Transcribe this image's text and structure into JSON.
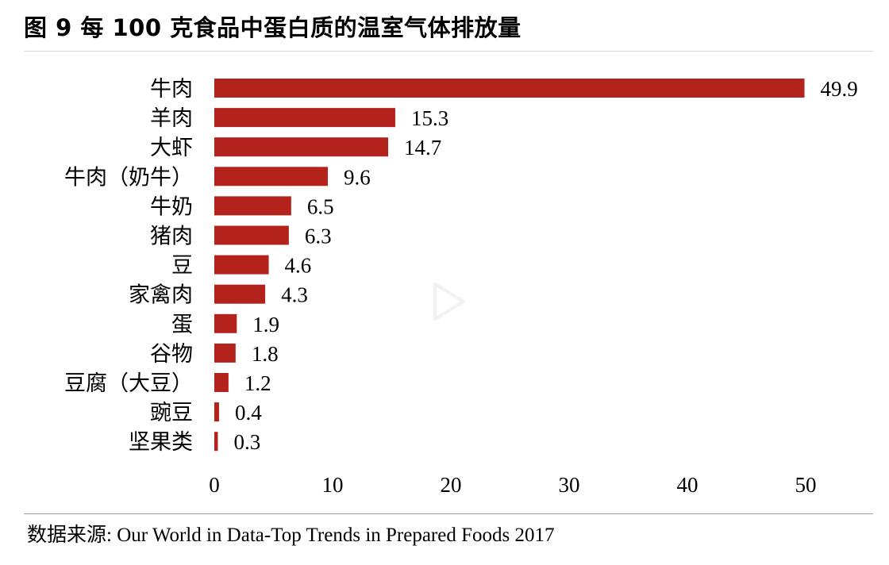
{
  "title": "图 9  每 100 克食品中蛋白质的温室气体排放量",
  "source": "数据来源: Our World in Data-Top Trends in Prepared Foods 2017",
  "colors": {
    "bar": "#b3231c"
  },
  "chart_data": {
    "type": "bar",
    "orientation": "horizontal",
    "categories": [
      "牛肉",
      "羊肉",
      "大虾",
      "牛肉（奶牛）",
      "牛奶",
      "猪肉",
      "豆",
      "家禽肉",
      "蛋",
      "谷物",
      "豆腐（大豆）",
      "豌豆",
      "坚果类"
    ],
    "values": [
      49.9,
      15.3,
      14.7,
      9.6,
      6.5,
      6.3,
      4.6,
      4.3,
      1.9,
      1.8,
      1.2,
      0.4,
      0.3
    ],
    "data_labels": [
      "49.9",
      "15.3",
      "14.7",
      "9.6",
      "6.5",
      "6.3",
      "4.6",
      "4.3",
      "1.9",
      "1.8",
      "1.2",
      "0.4",
      "0.3"
    ],
    "x_ticks": [
      "0",
      "10",
      "20",
      "30",
      "40",
      "50"
    ],
    "xlim": [
      0,
      50
    ],
    "grid": false,
    "legend": "none",
    "title": "图 9  每 100 克食品中蛋白质的温室气体排放量",
    "xlabel": "",
    "ylabel": ""
  }
}
